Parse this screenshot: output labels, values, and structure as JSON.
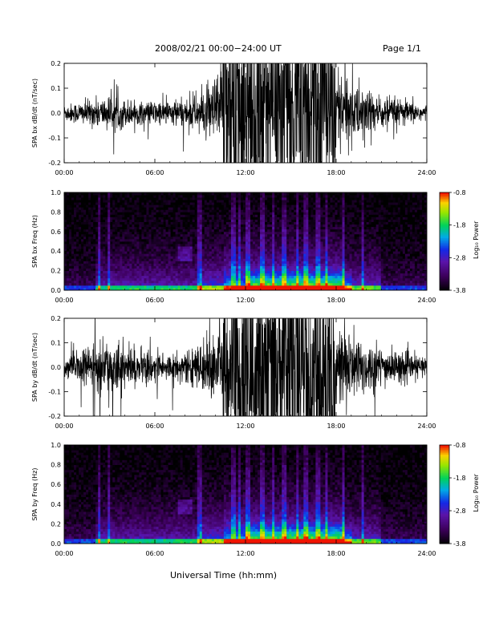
{
  "header": {
    "date_range": "2008/02/21   00:00−24:00 UT",
    "page": "Page 1/1"
  },
  "xlabel": "Universal Time (hh:mm)",
  "colorbar": {
    "label": "Log₁₀ Power",
    "ticks": [
      "-0.8",
      "-1.8",
      "-2.8",
      "-3.8"
    ],
    "range": [
      -3.8,
      -0.8
    ]
  },
  "chart_data": [
    {
      "type": "line",
      "ylabel": "SPA bx dB/dt (nT/sec)",
      "xticks": [
        "00:00",
        "06:00",
        "12:00",
        "18:00",
        "24:00"
      ],
      "yticks": [
        "-0.2",
        "-0.1",
        "0.0",
        "0.1",
        "0.2"
      ],
      "xlim": [
        0,
        24
      ],
      "ylim": [
        -0.2,
        0.2
      ],
      "series": [
        {
          "values_envelope_by_hour": [
            {
              "hour": 0,
              "amp": 0.03
            },
            {
              "hour": 2,
              "amp": 0.05
            },
            {
              "hour": 3,
              "amp": 0.06
            },
            {
              "hour": 5,
              "amp": 0.04
            },
            {
              "hour": 8,
              "amp": 0.05
            },
            {
              "hour": 9.5,
              "amp": 0.09
            },
            {
              "hour": 11,
              "amp": 0.2
            },
            {
              "hour": 14,
              "amp": 0.2
            },
            {
              "hour": 17,
              "amp": 0.2
            },
            {
              "hour": 19,
              "amp": 0.12
            },
            {
              "hour": 21,
              "amp": 0.06
            },
            {
              "hour": 24,
              "amp": 0.03
            }
          ]
        }
      ]
    },
    {
      "type": "heatmap",
      "ylabel": "SPA bx Freq (Hz)",
      "xticks": [
        "00:00",
        "06:00",
        "12:00",
        "18:00",
        "24:00"
      ],
      "yticks": [
        "0.0",
        "0.2",
        "0.4",
        "0.6",
        "0.8",
        "1.0"
      ],
      "xlim": [
        0,
        24
      ],
      "ylim": [
        0,
        1.0
      ],
      "zlim": [
        -3.8,
        -0.8
      ]
    },
    {
      "type": "line",
      "ylabel": "SPA by dB/dt (nT/sec)",
      "xticks": [
        "00:00",
        "06:00",
        "12:00",
        "18:00",
        "24:00"
      ],
      "yticks": [
        "-0.2",
        "-0.1",
        "0.0",
        "0.1",
        "0.2"
      ],
      "xlim": [
        0,
        24
      ],
      "ylim": [
        -0.2,
        0.2
      ],
      "series": [
        {
          "values_envelope_by_hour": [
            {
              "hour": 0,
              "amp": 0.03
            },
            {
              "hour": 1,
              "amp": 0.06
            },
            {
              "hour": 2,
              "amp": 0.08
            },
            {
              "hour": 3,
              "amp": 0.1
            },
            {
              "hour": 5,
              "amp": 0.06
            },
            {
              "hour": 8,
              "amp": 0.05
            },
            {
              "hour": 9.5,
              "amp": 0.1
            },
            {
              "hour": 11,
              "amp": 0.2
            },
            {
              "hour": 14,
              "amp": 0.2
            },
            {
              "hour": 17,
              "amp": 0.2
            },
            {
              "hour": 19,
              "amp": 0.13
            },
            {
              "hour": 21,
              "amp": 0.07
            },
            {
              "hour": 24,
              "amp": 0.035
            }
          ]
        }
      ]
    },
    {
      "type": "heatmap",
      "ylabel": "SPA by Freq (Hz)",
      "xticks": [
        "00:00",
        "06:00",
        "12:00",
        "18:00",
        "24:00"
      ],
      "yticks": [
        "0.0",
        "0.2",
        "0.4",
        "0.6",
        "0.8",
        "1.0"
      ],
      "xlim": [
        0,
        24
      ],
      "ylim": [
        0,
        1.0
      ],
      "zlim": [
        -3.8,
        -0.8
      ]
    }
  ]
}
